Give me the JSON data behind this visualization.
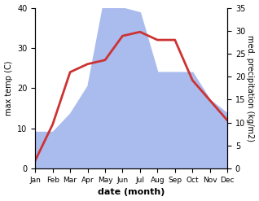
{
  "months": [
    "Jan",
    "Feb",
    "Mar",
    "Apr",
    "May",
    "Jun",
    "Jul",
    "Aug",
    "Sep",
    "Oct",
    "Nov",
    "Dec"
  ],
  "temp": [
    2,
    11,
    24,
    26,
    27,
    33,
    34,
    32,
    32,
    22,
    17,
    12
  ],
  "precip": [
    8,
    8,
    12,
    18,
    38,
    35,
    34,
    21,
    21,
    21,
    15,
    12
  ],
  "temp_color": "#cc3333",
  "precip_color": "#aabbee",
  "left_ylabel": "max temp (C)",
  "right_ylabel": "med. precipitation (kg/m2)",
  "xlabel": "date (month)",
  "left_ylim": [
    0,
    40
  ],
  "right_ylim": [
    0,
    35
  ],
  "left_yticks": [
    0,
    10,
    20,
    30,
    40
  ],
  "right_yticks": [
    0,
    5,
    10,
    15,
    20,
    25,
    30,
    35
  ],
  "figsize": [
    3.18,
    2.47
  ],
  "dpi": 100,
  "bg_color": "#ffffff",
  "line_width": 2.0
}
